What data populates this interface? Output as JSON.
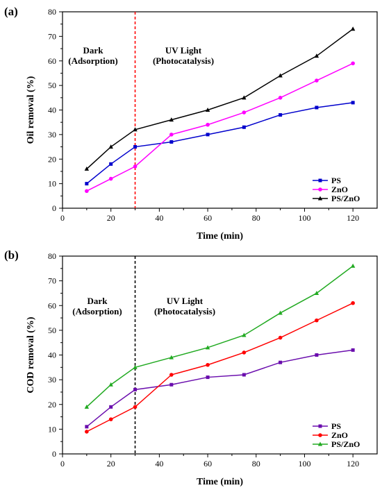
{
  "chart_data": [
    {
      "type": "line",
      "panel_label": "(a)",
      "xlabel": "Time (min)",
      "ylabel": "Oil removal (%)",
      "xlim": [
        0,
        130
      ],
      "ylim": [
        0,
        80
      ],
      "xticks": [
        0,
        20,
        40,
        60,
        80,
        100,
        120
      ],
      "yticks": [
        0,
        10,
        20,
        30,
        40,
        50,
        60,
        70,
        80
      ],
      "divider": {
        "x": 30,
        "color": "#ff0000",
        "style": "dashed"
      },
      "annotations": [
        {
          "text_line1": "Dark",
          "text_line2": "(Adsorption)"
        },
        {
          "text_line1": "UV Light",
          "text_line2": "(Photocatalysis)"
        }
      ],
      "legend_position": "bottom-right",
      "x": [
        10,
        20,
        30,
        45,
        60,
        75,
        90,
        105,
        120
      ],
      "series": [
        {
          "name": "PS",
          "color": "#0000cc",
          "marker": "square",
          "values": [
            10,
            18,
            25,
            27,
            30,
            33,
            38,
            41,
            43
          ]
        },
        {
          "name": "ZnO",
          "color": "#ff00ff",
          "marker": "circle",
          "values": [
            7,
            12,
            17,
            30,
            34,
            39,
            45,
            52,
            59
          ]
        },
        {
          "name": "PS/ZnO",
          "color": "#000000",
          "marker": "triangle",
          "values": [
            16,
            25,
            32,
            36,
            40,
            45,
            54,
            62,
            73
          ]
        }
      ]
    },
    {
      "type": "line",
      "panel_label": "(b)",
      "xlabel": "Time (min)",
      "ylabel": "COD removal (%)",
      "xlim": [
        0,
        130
      ],
      "ylim": [
        0,
        80
      ],
      "xticks": [
        0,
        20,
        40,
        60,
        80,
        100,
        120
      ],
      "yticks": [
        0,
        10,
        20,
        30,
        40,
        50,
        60,
        70,
        80
      ],
      "divider": {
        "x": 30,
        "color": "#000000",
        "style": "dashed"
      },
      "annotations": [
        {
          "text_line1": "Dark",
          "text_line2": "(Adsorption)"
        },
        {
          "text_line1": "UV Light",
          "text_line2": "(Photocatalysis)"
        }
      ],
      "legend_position": "bottom-right",
      "x": [
        10,
        20,
        30,
        45,
        60,
        75,
        90,
        105,
        120
      ],
      "series": [
        {
          "name": "PS",
          "color": "#6a0dad",
          "marker": "square",
          "values": [
            11,
            19,
            26,
            28,
            31,
            32,
            37,
            40,
            42
          ]
        },
        {
          "name": "ZnO",
          "color": "#ff0000",
          "marker": "circle",
          "values": [
            9,
            14,
            19,
            32,
            36,
            41,
            47,
            54,
            61
          ]
        },
        {
          "name": "PS/ZnO",
          "color": "#22aa22",
          "marker": "triangle",
          "values": [
            19,
            28,
            35,
            39,
            43,
            48,
            57,
            65,
            76
          ]
        }
      ]
    }
  ]
}
